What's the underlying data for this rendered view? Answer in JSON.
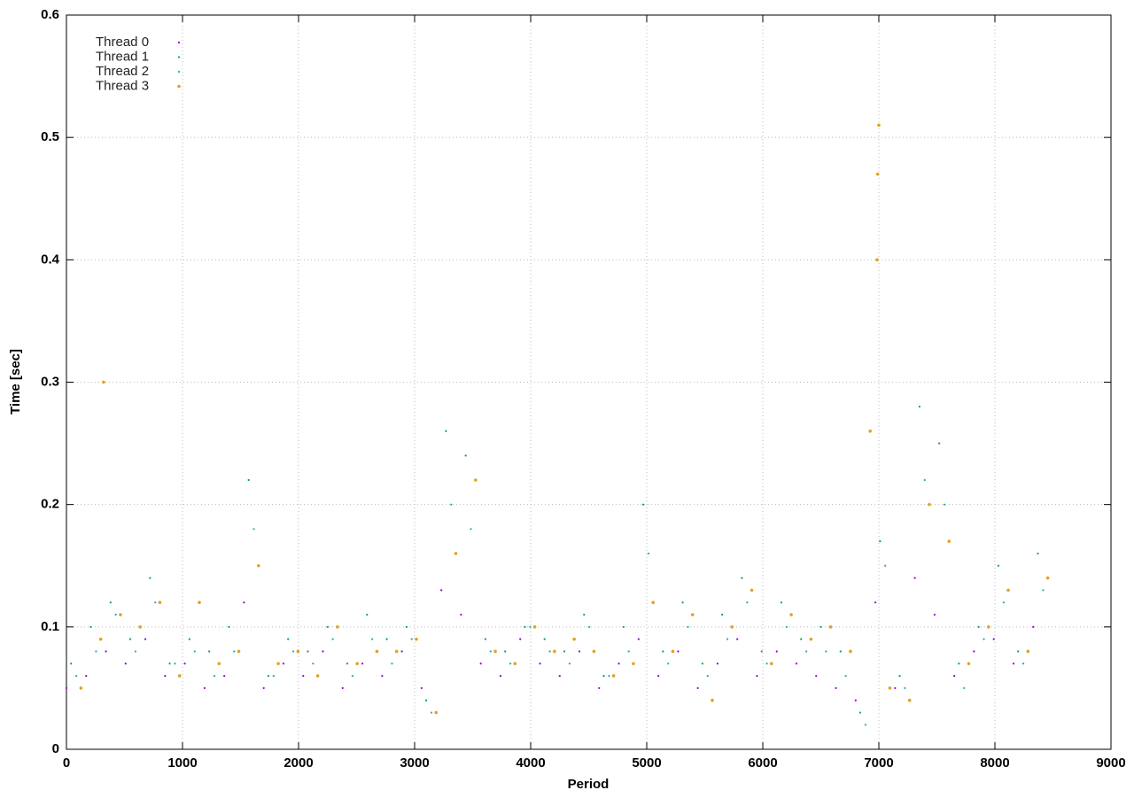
{
  "chart_data": {
    "type": "scatter",
    "xlabel": "Period",
    "ylabel": "Time [sec]",
    "xlim": [
      0,
      9000
    ],
    "ylim": [
      0,
      0.6
    ],
    "xticks": [
      0,
      1000,
      2000,
      3000,
      4000,
      5000,
      6000,
      7000,
      8000,
      9000
    ],
    "yticks": [
      0,
      0.1,
      0.2,
      0.3,
      0.4,
      0.5,
      0.6
    ],
    "grid": true,
    "legend": "top-left",
    "series": [
      {
        "name": "Thread 0",
        "color": "#9400d3",
        "x": [
          0,
          170,
          340,
          510,
          680,
          850,
          1020,
          1190,
          1360,
          1530,
          1700,
          1870,
          2040,
          2210,
          2380,
          2550,
          2720,
          2890,
          3060,
          3230,
          3400,
          3570,
          3740,
          3910,
          4080,
          4250,
          4420,
          4590,
          4760,
          4930,
          5100,
          5270,
          5440,
          5610,
          5780,
          5950,
          6120,
          6290,
          6460,
          6630,
          6800,
          6970,
          7140,
          7310,
          7480,
          7650,
          7820,
          7990,
          8160,
          8330
        ],
        "values": [
          0.05,
          0.06,
          0.08,
          0.07,
          0.09,
          0.06,
          0.07,
          0.05,
          0.06,
          0.12,
          0.05,
          0.07,
          0.06,
          0.08,
          0.05,
          0.07,
          0.06,
          0.08,
          0.05,
          0.13,
          0.11,
          0.07,
          0.06,
          0.09,
          0.07,
          0.06,
          0.08,
          0.05,
          0.07,
          0.09,
          0.06,
          0.08,
          0.05,
          0.07,
          0.09,
          0.06,
          0.08,
          0.07,
          0.06,
          0.05,
          0.04,
          0.12,
          0.05,
          0.14,
          0.11,
          0.06,
          0.08,
          0.09,
          0.07,
          0.1
        ]
      },
      {
        "name": "Thread 1",
        "color": "#009e73",
        "x": [
          40,
          210,
          380,
          550,
          720,
          890,
          1060,
          1230,
          1400,
          1570,
          1740,
          1910,
          2080,
          2250,
          2420,
          2590,
          2760,
          2930,
          3100,
          3270,
          3440,
          3610,
          3780,
          3950,
          4120,
          4290,
          4460,
          4630,
          4800,
          4970,
          5140,
          5310,
          5480,
          5650,
          5820,
          5990,
          6160,
          6330,
          6500,
          6670,
          6840,
          7010,
          7180,
          7350,
          7520,
          7690,
          7860,
          8030,
          8200,
          8370
        ],
        "values": [
          0.07,
          0.1,
          0.12,
          0.09,
          0.14,
          0.07,
          0.09,
          0.08,
          0.1,
          0.22,
          0.06,
          0.09,
          0.08,
          0.1,
          0.07,
          0.11,
          0.09,
          0.1,
          0.04,
          0.26,
          0.24,
          0.09,
          0.08,
          0.1,
          0.09,
          0.08,
          0.11,
          0.06,
          0.1,
          0.2,
          0.08,
          0.12,
          0.07,
          0.11,
          0.14,
          0.08,
          0.12,
          0.09,
          0.1,
          0.08,
          0.03,
          0.17,
          0.06,
          0.28,
          0.25,
          0.07,
          0.1,
          0.15,
          0.08,
          0.16
        ]
      },
      {
        "name": "Thread 2",
        "color": "#26a8b0",
        "x": [
          85,
          255,
          425,
          595,
          765,
          935,
          1105,
          1275,
          1445,
          1615,
          1785,
          1955,
          2125,
          2295,
          2465,
          2635,
          2805,
          2975,
          3145,
          3315,
          3485,
          3655,
          3825,
          3995,
          4165,
          4335,
          4505,
          4675,
          4845,
          5015,
          5185,
          5355,
          5525,
          5695,
          5865,
          6035,
          6205,
          6375,
          6545,
          6715,
          6885,
          7055,
          7225,
          7395,
          7565,
          7735,
          7905,
          8075,
          8245,
          8415
        ],
        "values": [
          0.06,
          0.08,
          0.11,
          0.08,
          0.12,
          0.07,
          0.08,
          0.06,
          0.08,
          0.18,
          0.06,
          0.08,
          0.07,
          0.09,
          0.06,
          0.09,
          0.07,
          0.09,
          0.03,
          0.2,
          0.18,
          0.08,
          0.07,
          0.1,
          0.08,
          0.07,
          0.1,
          0.06,
          0.08,
          0.16,
          0.07,
          0.1,
          0.06,
          0.09,
          0.12,
          0.07,
          0.1,
          0.08,
          0.08,
          0.06,
          0.02,
          0.15,
          0.05,
          0.22,
          0.2,
          0.05,
          0.09,
          0.12,
          0.07,
          0.13
        ]
      },
      {
        "name": "Thread 3",
        "color": "#e6a020",
        "x": [
          125,
          295,
          465,
          635,
          805,
          975,
          1145,
          1315,
          1485,
          1655,
          1825,
          1995,
          2165,
          2335,
          2505,
          2675,
          2845,
          3015,
          3185,
          3355,
          3525,
          3695,
          3865,
          4035,
          4205,
          4375,
          4545,
          4715,
          4885,
          5055,
          5225,
          5395,
          5565,
          5735,
          5905,
          6075,
          6245,
          6415,
          6585,
          6755,
          6925,
          7095,
          7265,
          7435,
          7605,
          7775,
          7945,
          8115,
          8285,
          8455,
          7000,
          6990,
          6985,
          320
        ],
        "values": [
          0.05,
          0.09,
          0.11,
          0.1,
          0.12,
          0.06,
          0.12,
          0.07,
          0.08,
          0.15,
          0.07,
          0.08,
          0.06,
          0.1,
          0.07,
          0.08,
          0.08,
          0.09,
          0.03,
          0.16,
          0.22,
          0.08,
          0.07,
          0.1,
          0.08,
          0.09,
          0.08,
          0.06,
          0.07,
          0.12,
          0.08,
          0.11,
          0.04,
          0.1,
          0.13,
          0.07,
          0.11,
          0.09,
          0.1,
          0.08,
          0.26,
          0.05,
          0.04,
          0.2,
          0.17,
          0.07,
          0.1,
          0.13,
          0.08,
          0.14,
          0.51,
          0.47,
          0.4,
          0.3
        ]
      }
    ]
  }
}
